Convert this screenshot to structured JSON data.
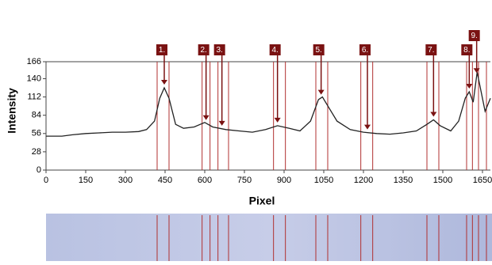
{
  "chart_data": {
    "type": "line",
    "x_label": "Pixel",
    "y_label": "Intensity",
    "x": [
      0,
      60,
      100,
      150,
      200,
      250,
      300,
      350,
      380,
      410,
      430,
      447,
      465,
      490,
      520,
      560,
      600,
      630,
      680,
      730,
      780,
      830,
      875,
      920,
      960,
      1000,
      1030,
      1045,
      1070,
      1100,
      1150,
      1200,
      1250,
      1300,
      1350,
      1400,
      1440,
      1465,
      1490,
      1530,
      1560,
      1585,
      1600,
      1615,
      1630,
      1645,
      1660,
      1680
    ],
    "values": [
      52,
      52,
      54,
      56,
      57,
      58,
      58,
      59,
      62,
      75,
      110,
      126,
      110,
      70,
      64,
      66,
      73,
      66,
      62,
      60,
      58,
      62,
      68,
      64,
      60,
      75,
      108,
      112,
      95,
      75,
      62,
      58,
      56,
      55,
      57,
      60,
      70,
      77,
      68,
      60,
      75,
      110,
      120,
      104,
      150,
      120,
      90,
      110
    ],
    "color": "#222222",
    "xlim": [
      0,
      1680
    ],
    "ylim": [
      0,
      166
    ],
    "xticks": [
      0,
      150,
      300,
      450,
      600,
      750,
      900,
      1050,
      1200,
      1350,
      1500,
      1650
    ],
    "yticks": [
      0,
      28,
      56,
      84,
      112,
      140,
      166
    ],
    "peaks": [
      {
        "label": "1.",
        "x": 447
      },
      {
        "label": "2.",
        "x": 605
      },
      {
        "label": "3.",
        "x": 665
      },
      {
        "label": "4.",
        "x": 875
      },
      {
        "label": "5.",
        "x": 1040
      },
      {
        "label": "6.",
        "x": 1215
      },
      {
        "label": "7.",
        "x": 1465
      },
      {
        "label": "8.",
        "x": 1600
      },
      {
        "label": "9.",
        "x": 1628
      }
    ],
    "peak_color": "#7a1212",
    "boundaries": [
      420,
      465,
      590,
      620,
      650,
      690,
      860,
      905,
      1020,
      1065,
      1190,
      1235,
      1440,
      1485,
      1590,
      1612,
      1635,
      1665
    ]
  }
}
